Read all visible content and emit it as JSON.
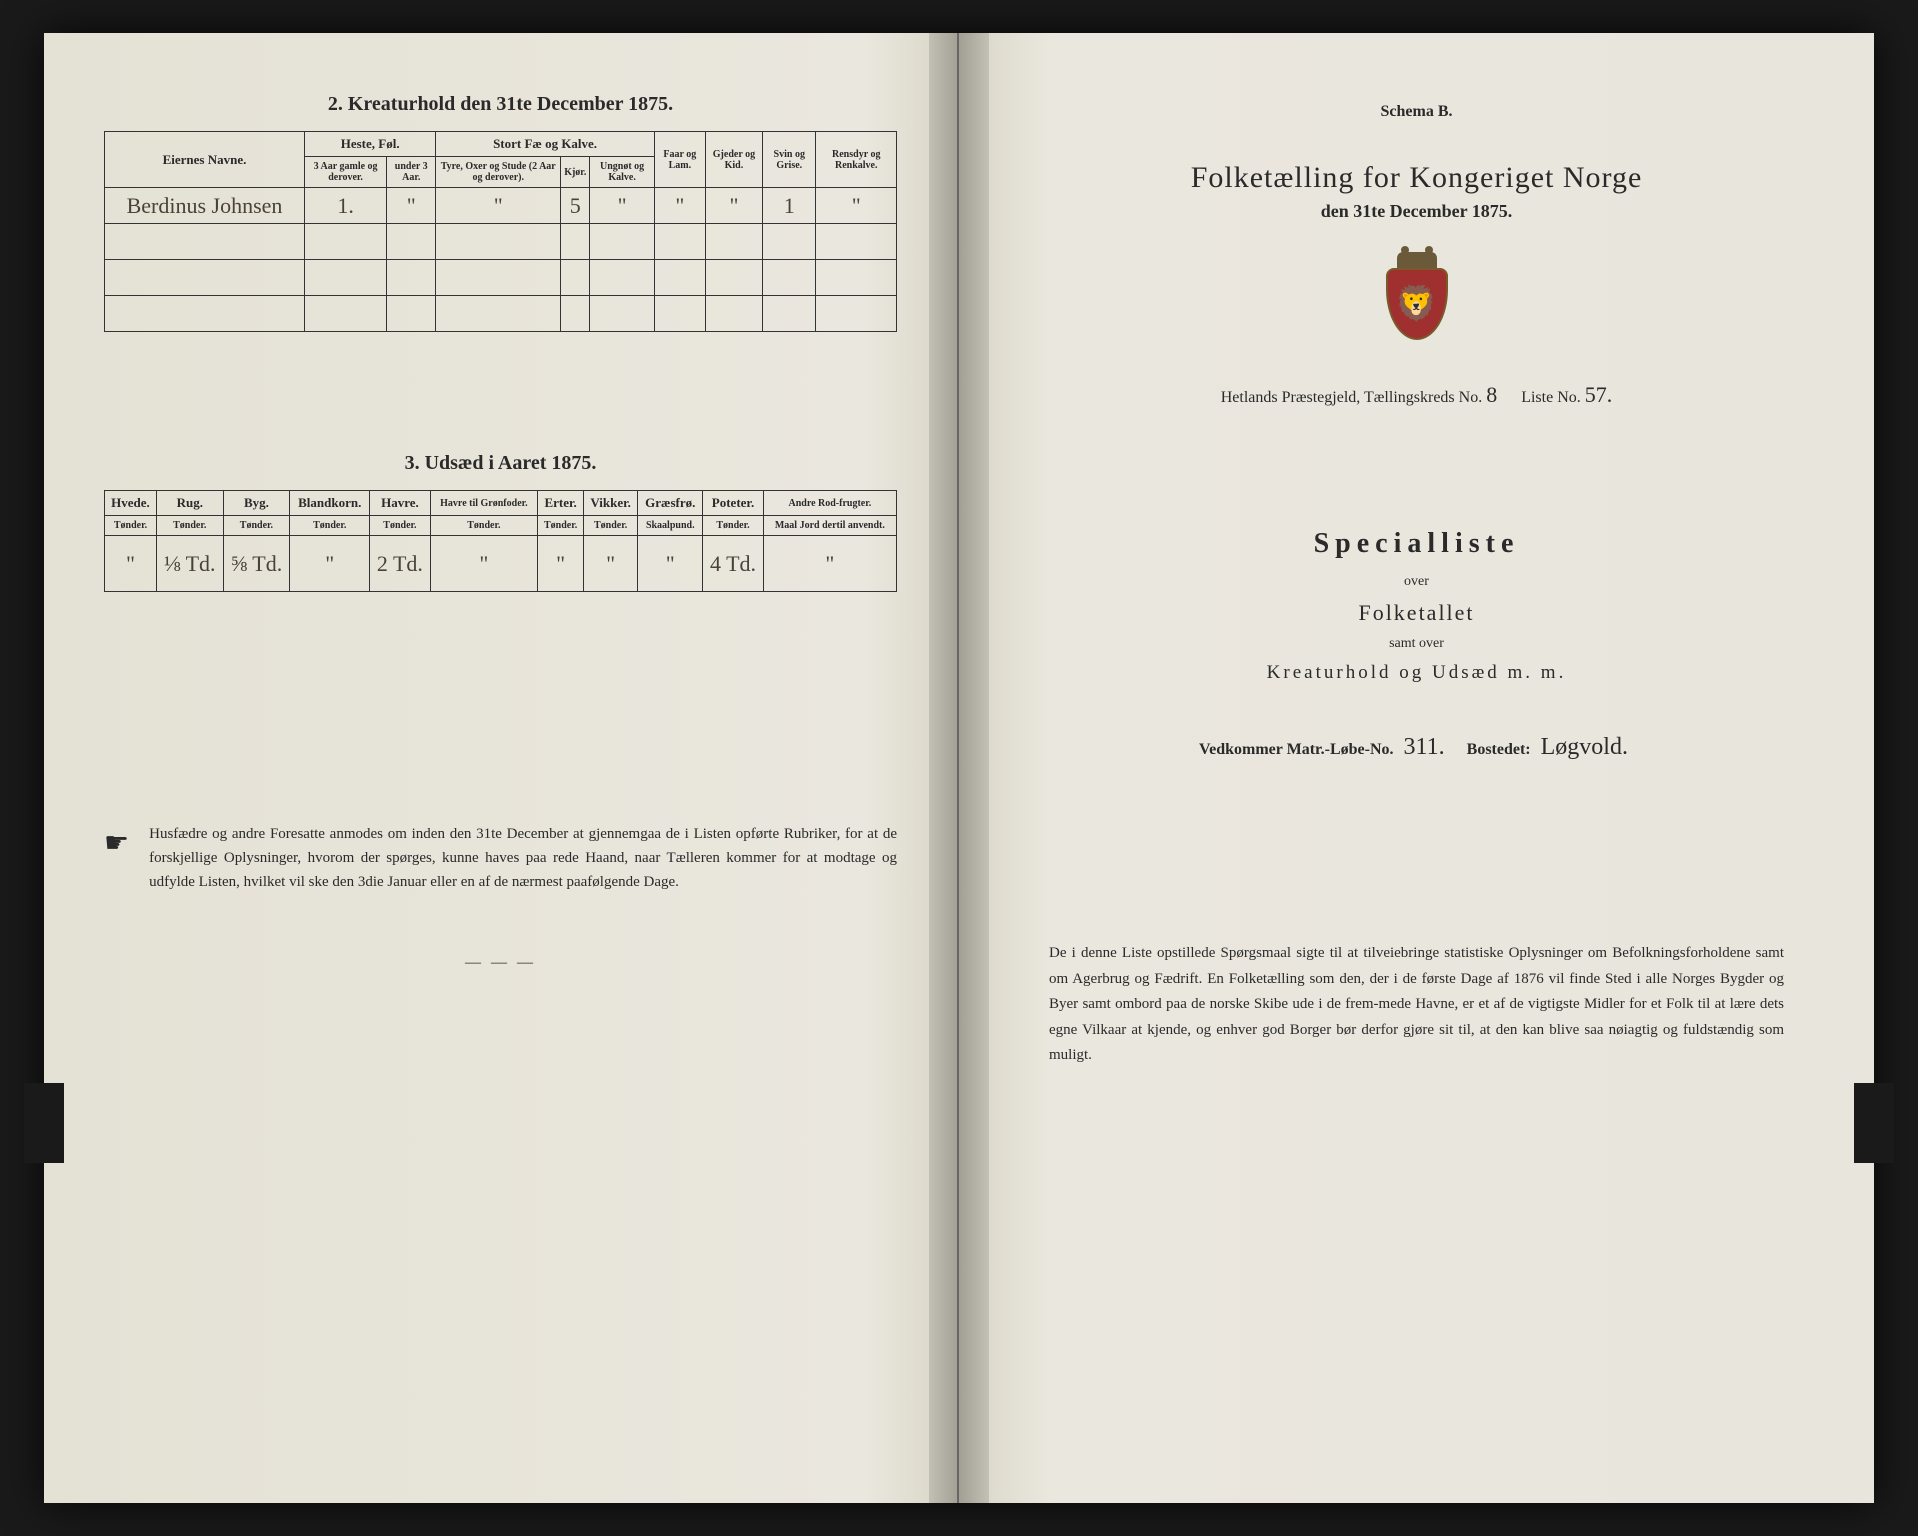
{
  "left": {
    "section2": {
      "title": "2.  Kreaturhold den 31te December 1875.",
      "headers": {
        "name": "Eiernes Navne.",
        "heste": "Heste, Føl.",
        "heste_sub1": "3 Aar gamle og derover.",
        "heste_sub2": "under 3 Aar.",
        "stort": "Stort Fæ og Kalve.",
        "stort_sub1": "Tyre, Oxer og Stude (2 Aar og derover).",
        "stort_sub2": "Kjør.",
        "stort_sub3": "Ungnøt og Kalve.",
        "faar": "Faar og Lam.",
        "gjeder": "Gjeder og Kid.",
        "svin": "Svin og Grise.",
        "rensdyr": "Rensdyr og Renkalve."
      },
      "row": {
        "name": "Berdinus Johnsen",
        "v": [
          "1.",
          "\"",
          "\"",
          "5",
          "\"",
          "\"",
          "\"",
          "1",
          "\""
        ]
      }
    },
    "section3": {
      "title": "3.  Udsæd i Aaret 1875.",
      "headers": [
        "Hvede.",
        "Rug.",
        "Byg.",
        "Blandkorn.",
        "Havre.",
        "Havre til Grønfoder.",
        "Erter.",
        "Vikker.",
        "Græsfrø.",
        "Poteter.",
        "Andre Rod-frugter."
      ],
      "subheaders": [
        "Tønder.",
        "Tønder.",
        "Tønder.",
        "Tønder.",
        "Tønder.",
        "Tønder.",
        "Tønder.",
        "Tønder.",
        "Skaalpund.",
        "Tønder.",
        "Maal Jord dertil anvendt."
      ],
      "row": [
        "\"",
        "⅛ Td.",
        "⅝ Td.",
        "\"",
        "2 Td.",
        "\"",
        "\"",
        "\"",
        "\"",
        "4 Td.",
        "\""
      ]
    },
    "footnote": "Husfædre og andre Foresatte anmodes om inden den 31te December at gjennemgaa de i Listen opførte Rubriker, for at de forskjellige Oplysninger, hvorom der spørges, kunne haves paa rede Haand, naar Tælleren kommer for at modtage og udfylde Listen, hvilket vil ske den 3die Januar eller en af de nærmest paafølgende Dage."
  },
  "right": {
    "schema": "Schema B.",
    "title": "Folketælling for Kongeriget Norge",
    "date": "den 31te December 1875.",
    "kreds_pre": "Hetlands Præstegjeld, Tællingskreds No.",
    "kreds_no": "8",
    "liste_pre": "Liste No.",
    "liste_no": "57.",
    "special": "Specialliste",
    "over1": "over",
    "folketallet": "Folketallet",
    "over2": "samt over",
    "kreatur": "Kreaturhold og Udsæd m. m.",
    "matr_pre": "Vedkommer Matr.-Løbe-No.",
    "matr_no": "311.",
    "bosted_pre": "Bostedet:",
    "bosted": "Løgvold.",
    "footnote": "De i denne Liste opstillede Spørgsmaal sigte til at tilveiebringe statistiske Oplysninger om Befolkningsforholdene samt om Agerbrug og Fædrift.  En Folketælling som den, der i de første Dage af 1876 vil finde Sted i alle Norges Bygder og Byer samt ombord paa de norske Skibe ude i de frem-mede Havne, er et af de vigtigste Midler for et Folk til at lære dets egne Vilkaar at kjende, og enhver god Borger bør derfor gjøre sit til, at den kan blive saa nøiagtig og fuldstændig som muligt."
  }
}
